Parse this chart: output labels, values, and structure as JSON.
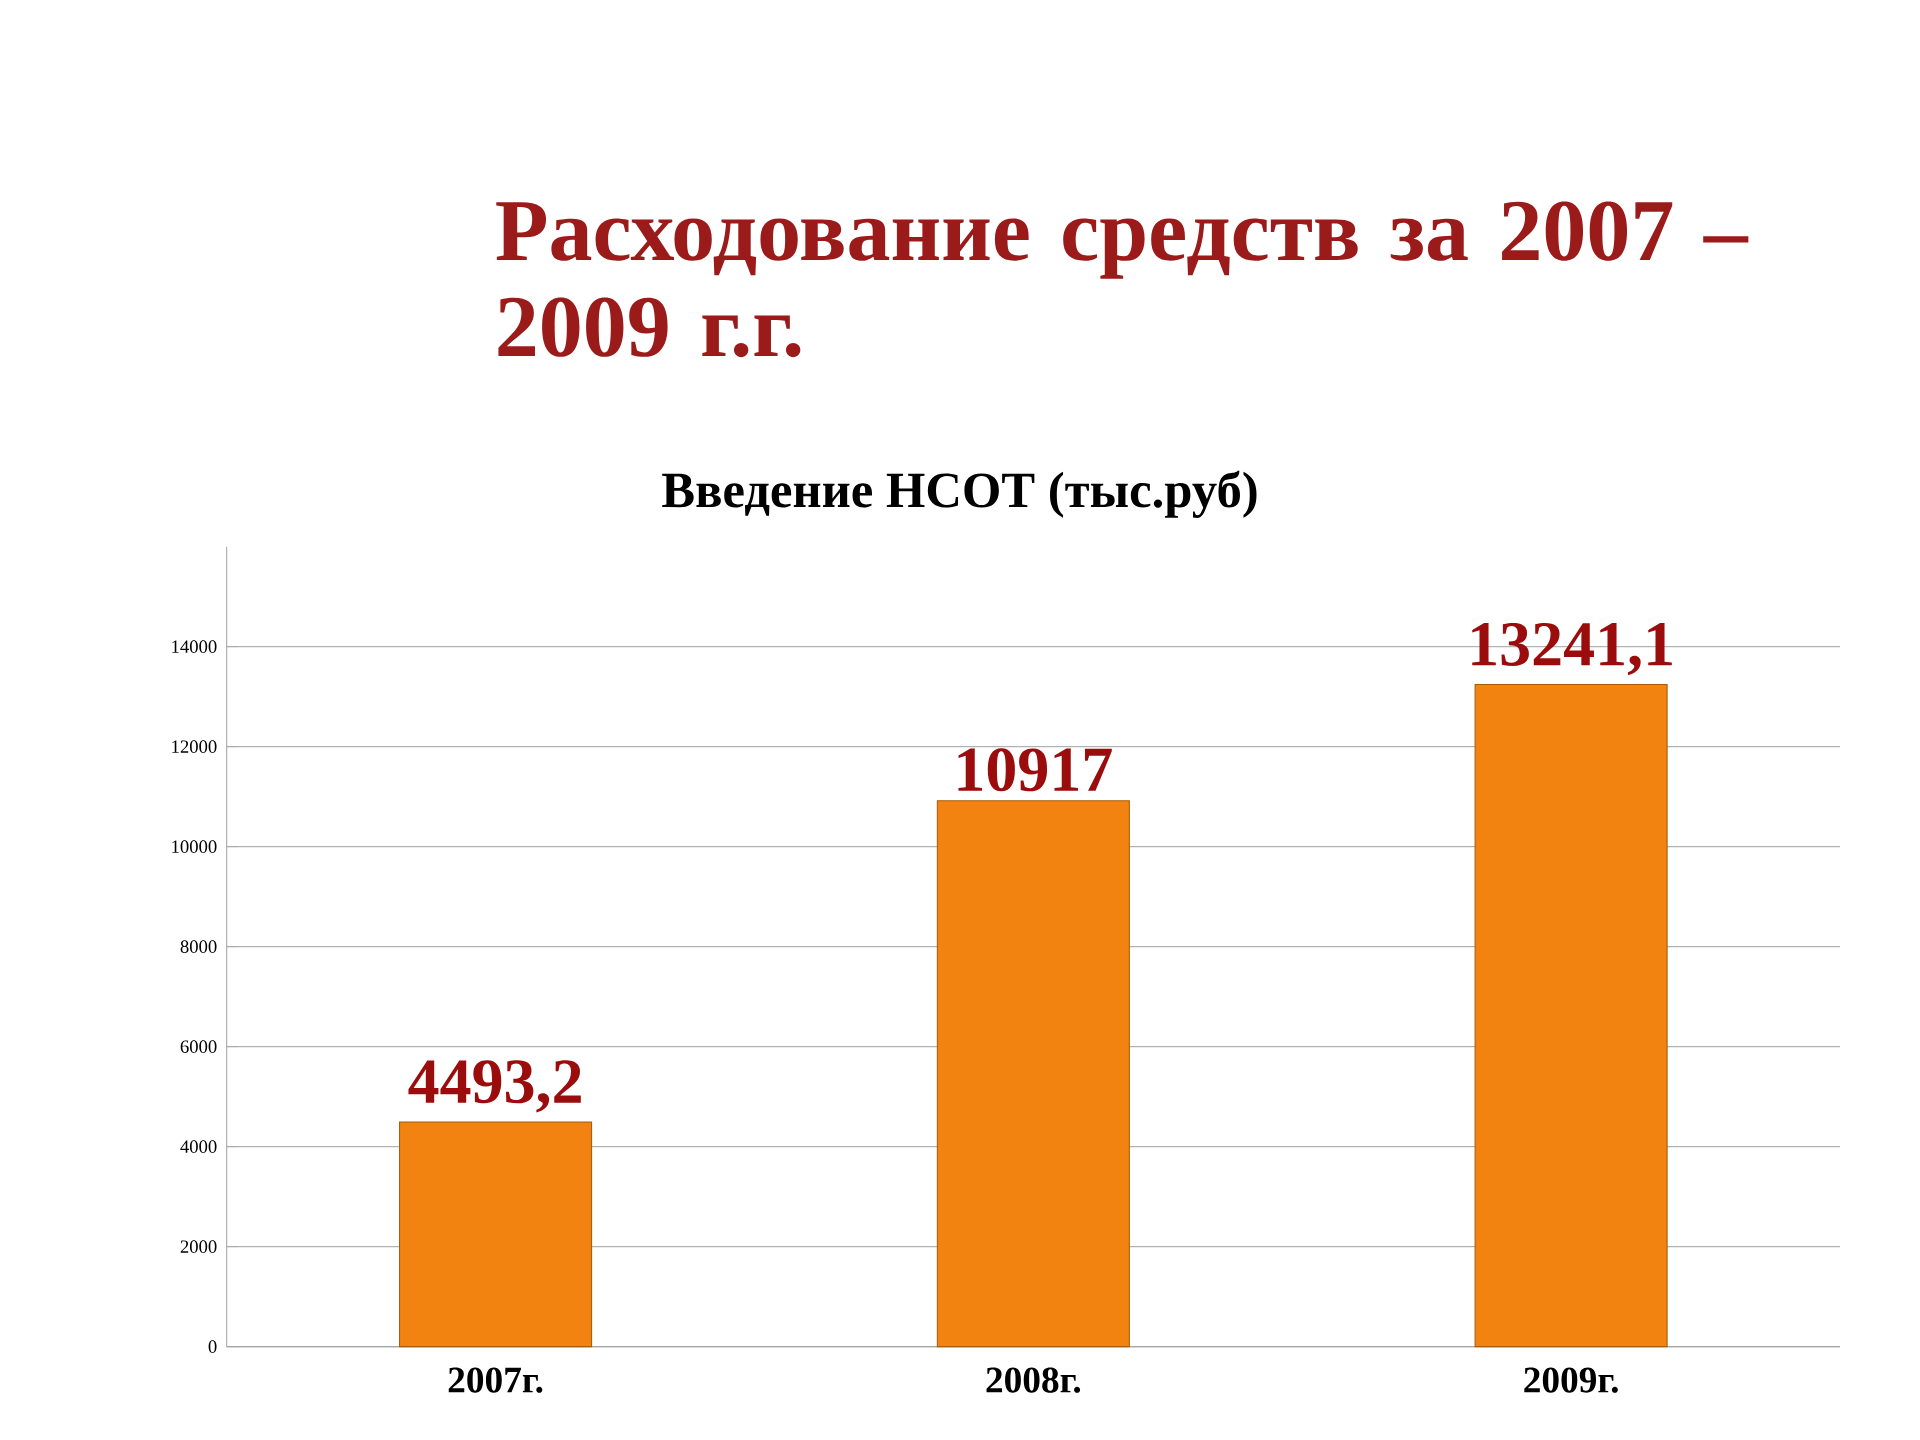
{
  "chart_data": {
    "type": "bar",
    "title": "Расходование средств за 2007 – 2009 г.г.",
    "subtitle": "Введение НСОТ (тыс.руб)",
    "categories": [
      "2007г.",
      "2008г.",
      "2009г."
    ],
    "values": [
      4493.2,
      10917,
      13241.1
    ],
    "value_labels": [
      "4493,2",
      "10917",
      "13241,1"
    ],
    "color": "#f28310",
    "ylim": [
      0,
      16000
    ],
    "yticks": [
      0,
      2000,
      4000,
      6000,
      8000,
      10000,
      12000,
      14000
    ],
    "grid": "y"
  }
}
